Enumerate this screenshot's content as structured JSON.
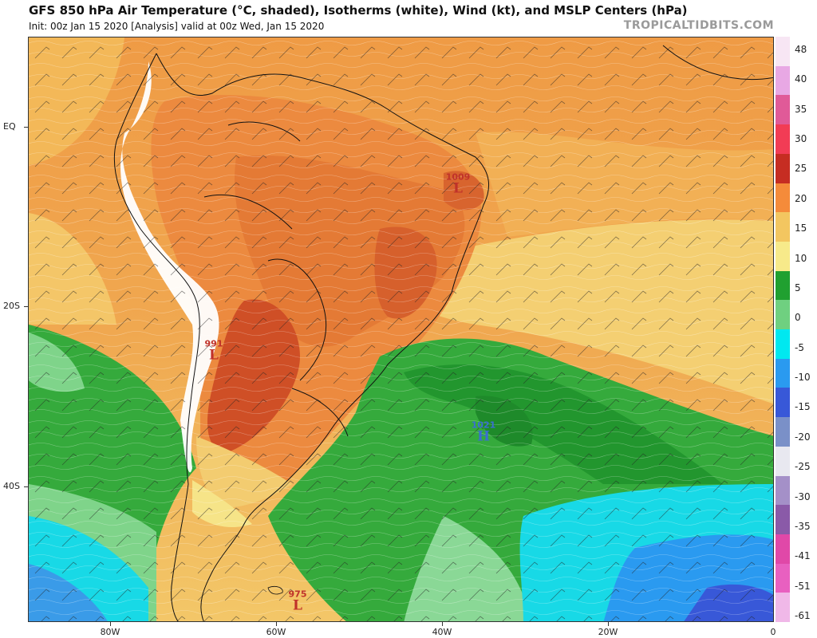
{
  "header": {
    "title": "GFS 850 hPa Air Temperature (°C, shaded), Isotherms (white), Wind (kt), and MSLP Centers (hPa)",
    "subtitle": "Init: 00z Jan 15 2020   [Analysis]   valid at 00z Wed, Jan 15 2020",
    "brand": "TROPICALTIDBITS.COM"
  },
  "axes": {
    "lat_labels": [
      "EQ",
      "20S",
      "40S"
    ],
    "lon_labels": [
      "80W",
      "60W",
      "40W",
      "20W",
      "0"
    ]
  },
  "colorbar": {
    "labels": [
      "48",
      "40",
      "35",
      "30",
      "25",
      "20",
      "15",
      "10",
      "5",
      "0",
      "-5",
      "-10",
      "-15",
      "-20",
      "-25",
      "-30",
      "-35",
      "-41",
      "-51",
      "-61"
    ],
    "colors": [
      "#f7e6f4",
      "#e8a8e4",
      "#e05a98",
      "#f23c55",
      "#c62d22",
      "#f58b3a",
      "#f3c660",
      "#f7ea8a",
      "#20a030",
      "#6fd080",
      "#00e8f0",
      "#2a9af0",
      "#3858d8",
      "#7a90c8",
      "#e8e8f0",
      "#a490c8",
      "#8a5aa8",
      "#e048a8",
      "#e860c0",
      "#f0b8e8"
    ]
  },
  "pressure_centers": [
    {
      "type": "L",
      "value": "1009",
      "color": "#c0322a"
    },
    {
      "type": "L",
      "value": "991",
      "color": "#c0322a"
    },
    {
      "type": "H",
      "value": "1021",
      "color": "#3a6fd0"
    },
    {
      "type": "L",
      "value": "975",
      "color": "#c0322a"
    }
  ]
}
